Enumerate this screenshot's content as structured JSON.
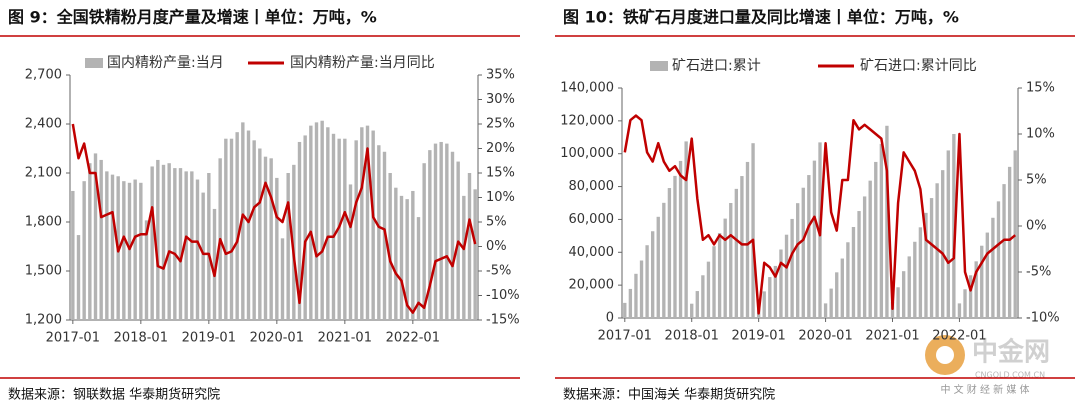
{
  "chart_data": [
    {
      "type": "combo",
      "title": "图 9：全国铁精粉月度产量及增速丨单位：万吨，%",
      "source": "数据来源：钢联数据 华泰期货研究院",
      "legend": "top",
      "categories": [
        "2017-01",
        null,
        null,
        null,
        null,
        null,
        null,
        null,
        null,
        null,
        null,
        null,
        "2018-01",
        null,
        null,
        null,
        null,
        null,
        null,
        null,
        null,
        null,
        null,
        null,
        "2019-01",
        null,
        null,
        null,
        null,
        null,
        null,
        null,
        null,
        null,
        null,
        null,
        "2020-01",
        null,
        null,
        null,
        null,
        null,
        null,
        null,
        null,
        null,
        null,
        null,
        "2021-01",
        null,
        null,
        null,
        null,
        null,
        null,
        null,
        null,
        null,
        null,
        null,
        "2022-01",
        null,
        null,
        null,
        null,
        null,
        null,
        null,
        null,
        null,
        null,
        null
      ],
      "series": [
        {
          "name": "国内精粉产量:当月",
          "type": "bar",
          "color": "#b3b3b3",
          "values": [
            1990,
            1720,
            2050,
            2160,
            2220,
            2180,
            2110,
            2090,
            2080,
            2050,
            2040,
            2060,
            2040,
            1810,
            2140,
            2180,
            2150,
            2160,
            2130,
            2130,
            2110,
            2110,
            2060,
            1980,
            2100,
            1880,
            2190,
            2310,
            2310,
            2350,
            2410,
            2360,
            2300,
            2250,
            2200,
            2190,
            2070,
            1700,
            2100,
            2150,
            2290,
            2330,
            2390,
            2410,
            2420,
            2380,
            2340,
            2310,
            2310,
            2030,
            2300,
            2380,
            2390,
            2360,
            2270,
            2230,
            2100,
            2010,
            1960,
            1940,
            1990,
            1830,
            2160,
            2240,
            2280,
            2290,
            2280,
            2230,
            2170,
            1960,
            2100,
            2000
          ]
        },
        {
          "name": "国内精粉产量:当月同比",
          "type": "line",
          "color": "#c00000",
          "axis": "y2",
          "values": [
            25,
            18,
            21,
            15,
            15,
            6,
            6.5,
            7,
            -1,
            2,
            -0.5,
            2,
            2.5,
            2.5,
            8,
            -4,
            -4.5,
            -1,
            -1.5,
            -3,
            2,
            1,
            1,
            -1.5,
            -1.5,
            -6,
            1.5,
            -1.5,
            -1,
            1,
            6.5,
            5,
            8,
            9,
            13,
            10,
            6,
            5,
            9,
            -2,
            -11.5,
            1,
            3,
            -2,
            -1,
            2,
            2,
            4,
            7,
            4,
            9,
            12,
            20,
            6,
            4,
            3.5,
            -3,
            -5.5,
            -7,
            -12,
            -13.5,
            -11.5,
            -12.5,
            -8,
            -3,
            -2.5,
            -2,
            -4,
            1,
            -0.5,
            5.5,
            0.5
          ]
        }
      ],
      "ylim": [
        1200,
        2700
      ],
      "yticks": [
        {
          "value": 1200,
          "label": "1,200"
        },
        {
          "value": 1500,
          "label": "1,500"
        },
        {
          "value": 1800,
          "label": "1,800"
        },
        {
          "value": 2100,
          "label": "2,100"
        },
        {
          "value": 2400,
          "label": "2,400"
        },
        {
          "value": 2700,
          "label": "2,700"
        }
      ],
      "y2lim": [
        -15,
        35
      ],
      "y2ticks": [
        {
          "value": -15,
          "label": "-15%"
        },
        {
          "value": -10,
          "label": "-10%"
        },
        {
          "value": -5,
          "label": "-5%"
        },
        {
          "value": 0,
          "label": "0%"
        },
        {
          "value": 5,
          "label": "5%"
        },
        {
          "value": 10,
          "label": "10%"
        },
        {
          "value": 15,
          "label": "15%"
        },
        {
          "value": 20,
          "label": "20%"
        },
        {
          "value": 25,
          "label": "25%"
        },
        {
          "value": 30,
          "label": "30%"
        },
        {
          "value": 35,
          "label": "35%"
        }
      ]
    },
    {
      "type": "combo",
      "title": "图 10：铁矿石月度进口量及同比增速丨单位：万吨，%",
      "source": "数据来源：中国海关 华泰期货研究院",
      "legend": "top",
      "categories": [
        "2017-01",
        null,
        null,
        null,
        null,
        null,
        null,
        null,
        null,
        null,
        null,
        null,
        "2018-01",
        null,
        null,
        null,
        null,
        null,
        null,
        null,
        null,
        null,
        null,
        null,
        "2019-01",
        null,
        null,
        null,
        null,
        null,
        null,
        null,
        null,
        null,
        null,
        null,
        "2020-01",
        null,
        null,
        null,
        null,
        null,
        null,
        null,
        null,
        null,
        null,
        null,
        "2021-01",
        null,
        null,
        null,
        null,
        null,
        null,
        null,
        null,
        null,
        null,
        null,
        "2022-01",
        null,
        null,
        null,
        null,
        null,
        null,
        null,
        null,
        null,
        null
      ],
      "series": [
        {
          "name": "矿石进口:累计",
          "type": "bar",
          "color": "#b3b3b3",
          "values": [
            9200,
            17700,
            26900,
            35000,
            44300,
            52800,
            61600,
            70100,
            79100,
            86500,
            95600,
            107500,
            8700,
            16400,
            26000,
            34300,
            43700,
            51700,
            60500,
            70000,
            78600,
            86400,
            95000,
            106400,
            8300,
            16200,
            24900,
            31700,
            41700,
            50700,
            60300,
            69900,
            79300,
            87000,
            95800,
            106900,
            8900,
            17900,
            27800,
            36200,
            46100,
            55400,
            65100,
            74000,
            83600,
            95000,
            106000,
            117000,
            9800,
            18700,
            28500,
            37500,
            46400,
            55200,
            64000,
            73000,
            82000,
            90000,
            102000,
            112000,
            8900,
            17500,
            26000,
            34500,
            44000,
            52000,
            61000,
            71000,
            81500,
            92000,
            102000
          ]
        },
        {
          "name": "矿石进口:累计同比",
          "type": "line",
          "color": "#c00000",
          "axis": "y2",
          "values": [
            8,
            11.5,
            12,
            11.5,
            8,
            7,
            9,
            7,
            6,
            6.5,
            5.5,
            5,
            9.5,
            3,
            -1.5,
            -1,
            -2,
            -1,
            -1.5,
            -1,
            -1.5,
            -2,
            -2,
            -1.5,
            -9.5,
            -4,
            -4.5,
            -5.5,
            -4,
            -4.5,
            -3,
            -2,
            -1.5,
            0,
            1,
            -1,
            9,
            1.5,
            -0.5,
            5,
            5,
            11.5,
            10.5,
            11,
            10.5,
            10,
            9.5,
            6,
            -9,
            2.5,
            8,
            7,
            6,
            4,
            -1.5,
            -2,
            -2.5,
            -3,
            -4,
            -3.5,
            10,
            -5,
            -7,
            -5,
            -4,
            -3,
            -2.5,
            -2,
            -1.5,
            -1.5,
            -1
          ]
        }
      ],
      "ylim": [
        0,
        140000
      ],
      "yticks": [
        0,
        {
          "value": 20000,
          "label": "20,000"
        },
        {
          "value": 40000,
          "label": "40,000"
        },
        {
          "value": 60000,
          "label": "60,000"
        },
        {
          "value": 80000,
          "label": "80,000"
        },
        {
          "value": 100000,
          "label": "100,000"
        },
        {
          "value": 120000,
          "label": "120,000"
        },
        {
          "value": 140000,
          "label": "140,000"
        }
      ],
      "y2lim": [
        -10,
        15
      ],
      "y2ticks": [
        {
          "value": -10,
          "label": "-10%"
        },
        {
          "value": -5,
          "label": "-5%"
        },
        {
          "value": 0,
          "label": "0%"
        },
        {
          "value": 5,
          "label": "5%"
        },
        {
          "value": 10,
          "label": "10%"
        },
        {
          "value": 15,
          "label": "15%"
        }
      ]
    }
  ],
  "watermark": {
    "name": "中金网",
    "site": "CNGOLD.COM.CN",
    "tagline": "中 文 财 经 新 媒 体"
  }
}
